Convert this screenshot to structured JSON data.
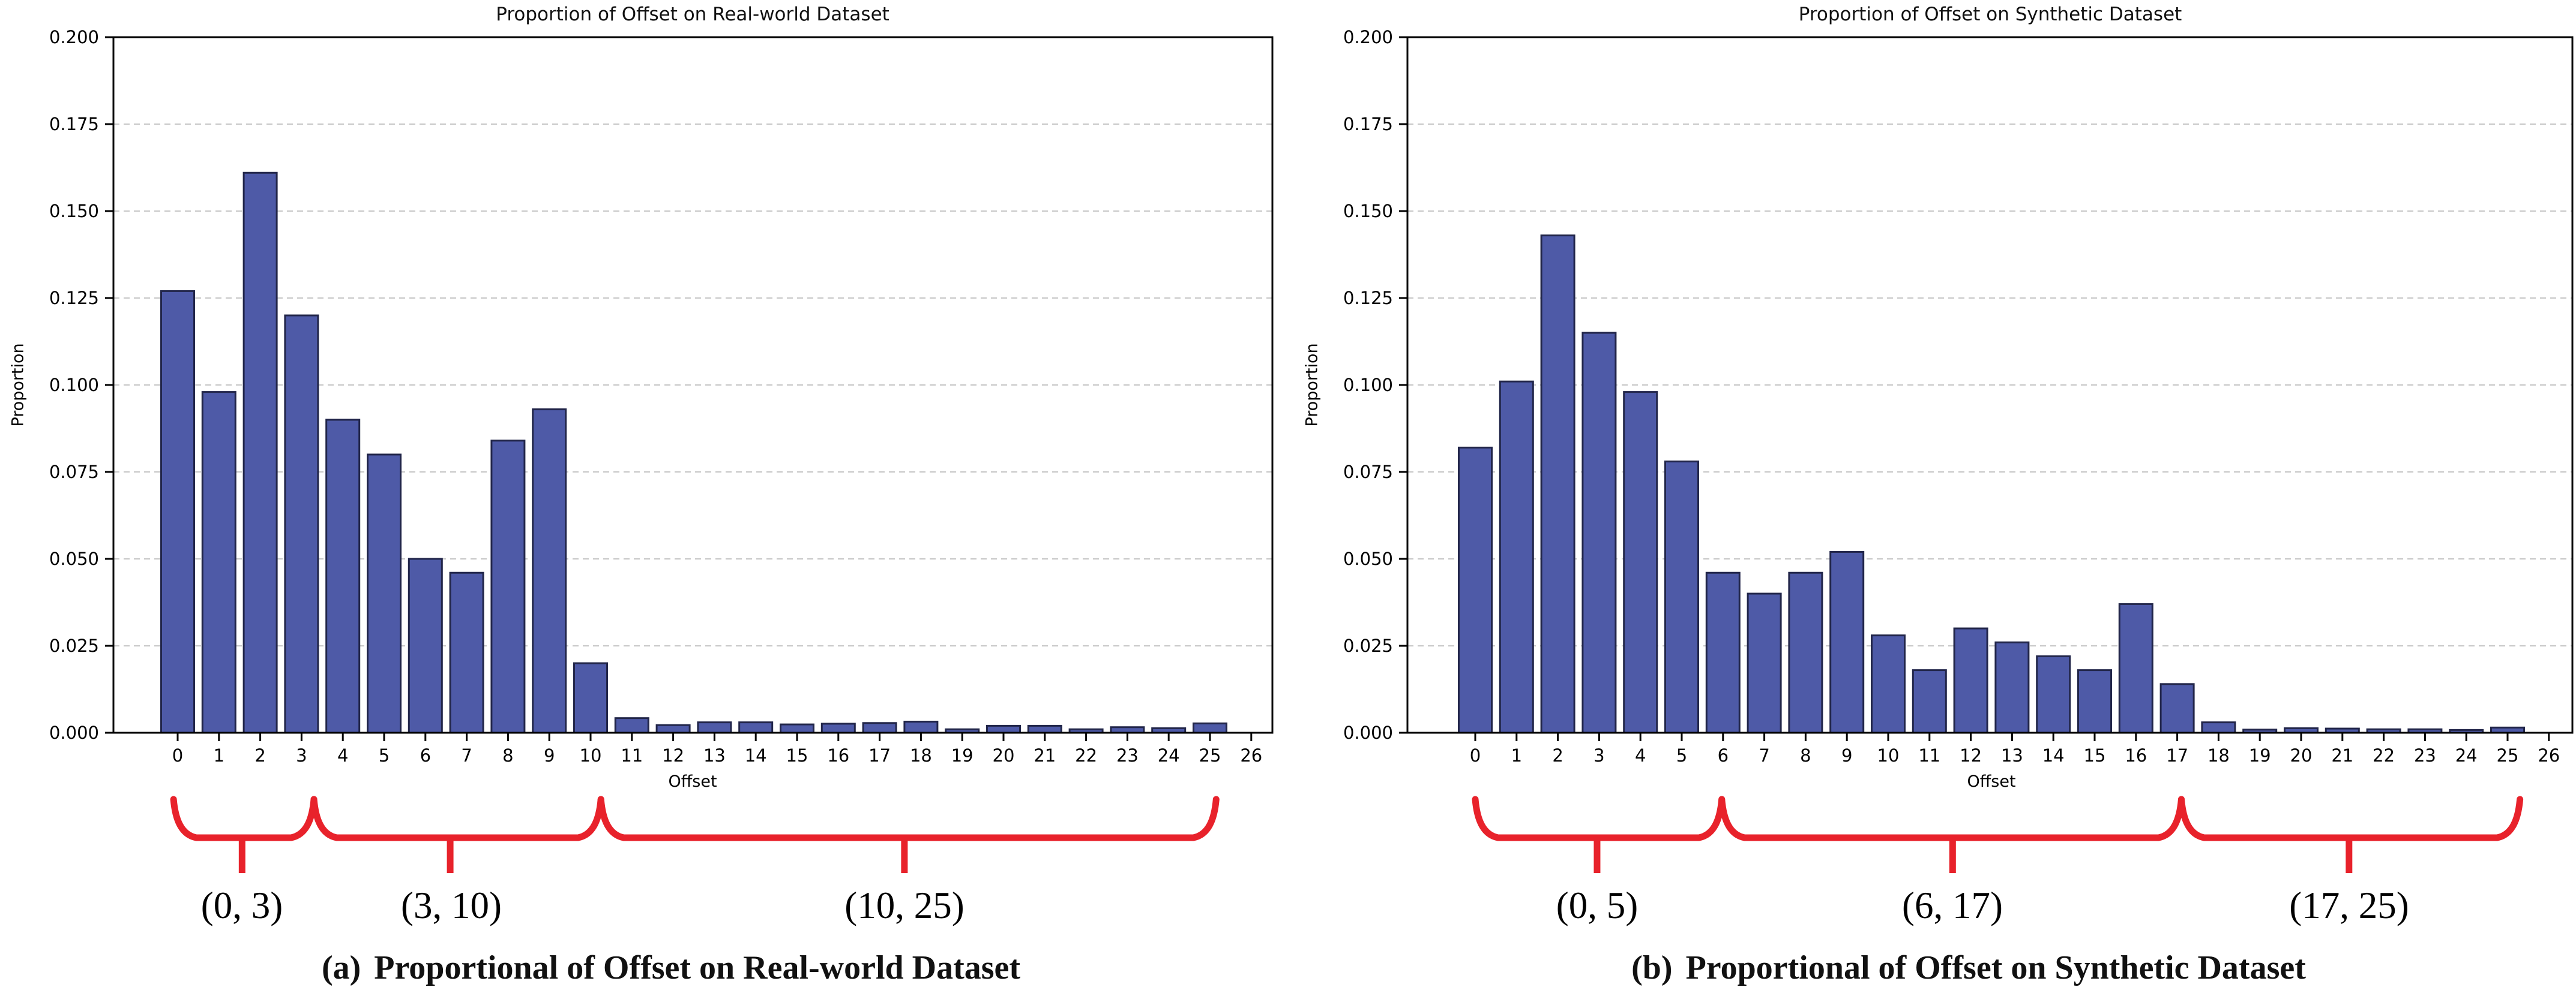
{
  "styles": {
    "background": "#ffffff",
    "bar_fill": "#4e5aa7",
    "bar_edge": "#22264a",
    "grid_color": "#c9c9c9",
    "spine_color": "#000000",
    "brace_color": "#e8222b",
    "text_color": "#000000"
  },
  "chart_data": [
    {
      "type": "bar",
      "id": "real-world",
      "title": "Proportion of Offset on Real-world Dataset",
      "xlabel": "Offset",
      "ylabel": "Proportion",
      "ylim": [
        0,
        0.2
      ],
      "yticks": [
        "0.000",
        "0.025",
        "0.050",
        "0.075",
        "0.100",
        "0.125",
        "0.150",
        "0.175",
        "0.200"
      ],
      "grid": "horizontal-dashed",
      "legend": "none",
      "categories": [
        "0",
        "1",
        "2",
        "3",
        "4",
        "5",
        "6",
        "7",
        "8",
        "9",
        "10",
        "11",
        "12",
        "13",
        "14",
        "15",
        "16",
        "17",
        "18",
        "19",
        "20",
        "21",
        "22",
        "23",
        "24",
        "25",
        "26"
      ],
      "values": [
        0.127,
        0.098,
        0.161,
        0.12,
        0.09,
        0.08,
        0.05,
        0.046,
        0.084,
        0.093,
        0.02,
        0.0042,
        0.0022,
        0.003,
        0.003,
        0.0024,
        0.0026,
        0.0028,
        0.0032,
        0.001,
        0.002,
        0.002,
        0.001,
        0.0016,
        0.0013,
        0.0027,
        0.0
      ],
      "annotations": {
        "braces": [
          {
            "label": "(0, 3)",
            "from_offset": -0.1,
            "to_offset": 3.3,
            "pointer_offset": 1.56
          },
          {
            "label": "(3, 10)",
            "from_offset": 3.3,
            "to_offset": 10.25,
            "pointer_offset": 6.6
          },
          {
            "label": "(10, 25)",
            "from_offset": 10.25,
            "to_offset": 25.15,
            "pointer_offset": 17.6
          }
        ]
      },
      "caption": {
        "label": "(a)",
        "text": "Proportional of Offset on Real-world Dataset"
      }
    },
    {
      "type": "bar",
      "id": "synthetic",
      "title": "Proportion of Offset on Synthetic Dataset",
      "xlabel": "Offset",
      "ylabel": "Proportion",
      "ylim": [
        0,
        0.2
      ],
      "yticks": [
        "0.000",
        "0.025",
        "0.050",
        "0.075",
        "0.100",
        "0.125",
        "0.150",
        "0.175",
        "0.200"
      ],
      "grid": "horizontal-dashed",
      "legend": "none",
      "categories": [
        "0",
        "1",
        "2",
        "3",
        "4",
        "5",
        "6",
        "7",
        "8",
        "9",
        "10",
        "11",
        "12",
        "13",
        "14",
        "15",
        "16",
        "17",
        "18",
        "19",
        "20",
        "21",
        "22",
        "23",
        "24",
        "25",
        "26"
      ],
      "values": [
        0.082,
        0.101,
        0.143,
        0.115,
        0.098,
        0.078,
        0.046,
        0.04,
        0.046,
        0.052,
        0.028,
        0.018,
        0.03,
        0.026,
        0.022,
        0.018,
        0.037,
        0.014,
        0.003,
        0.0009,
        0.0013,
        0.0012,
        0.001,
        0.001,
        0.0008,
        0.0015,
        0.0
      ],
      "annotations": {
        "braces": [
          {
            "label": "(0, 5)",
            "from_offset": 0.0,
            "to_offset": 5.97,
            "pointer_offset": 2.95
          },
          {
            "label": "(6, 17)",
            "from_offset": 5.97,
            "to_offset": 17.1,
            "pointer_offset": 11.56
          },
          {
            "label": "(17, 25)",
            "from_offset": 17.1,
            "to_offset": 25.3,
            "pointer_offset": 21.16
          }
        ]
      },
      "caption": {
        "label": "(b)",
        "text": "Proportional of Offset on Synthetic Dataset"
      }
    }
  ]
}
